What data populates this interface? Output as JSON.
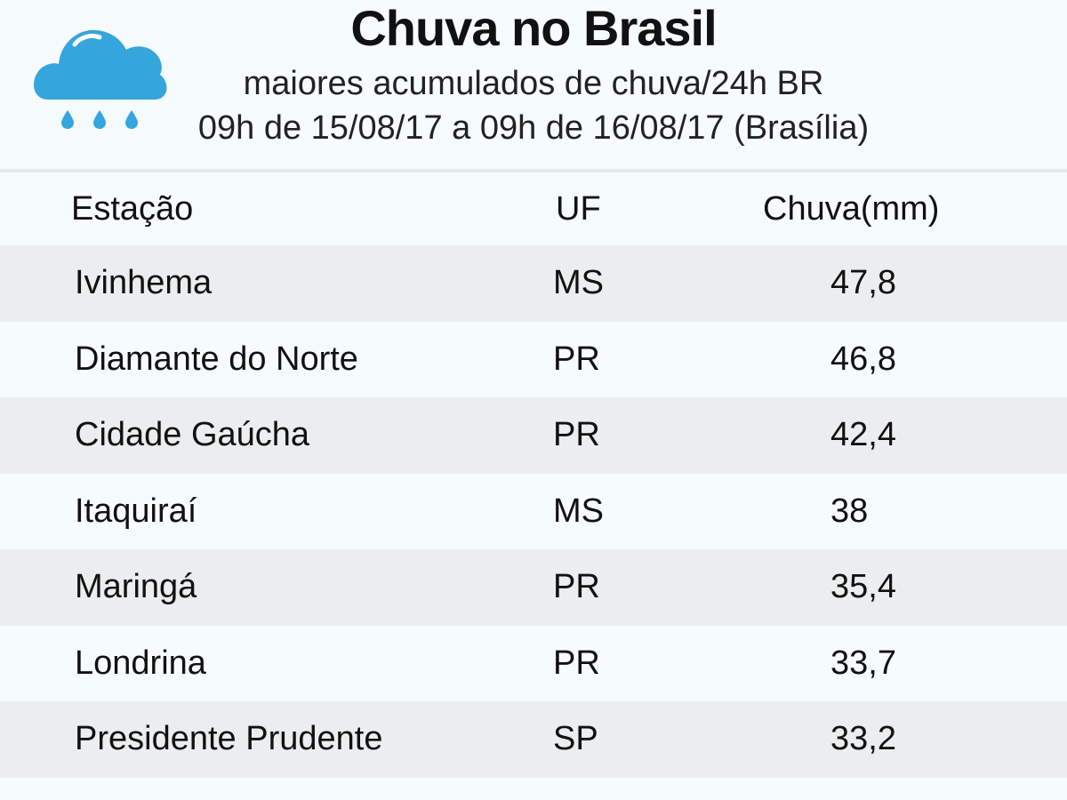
{
  "header": {
    "title": "Chuva no Brasil",
    "subtitle": "maiores acumulados de chuva/24h BR",
    "period": "09h de 15/08/17 a 09h de 16/08/17 (Brasília)",
    "icon": "rain-cloud-icon",
    "icon_color": "#35a6dc"
  },
  "table": {
    "columns": [
      "Estação",
      "UF",
      "Chuva(mm)"
    ],
    "rows": [
      {
        "station": "Ivinhema",
        "uf": "MS",
        "rain": "47,8"
      },
      {
        "station": "Diamante do Norte",
        "uf": "PR",
        "rain": "46,8"
      },
      {
        "station": "Cidade Gaúcha",
        "uf": "PR",
        "rain": "42,4"
      },
      {
        "station": "Itaquiraí",
        "uf": "MS",
        "rain": "38"
      },
      {
        "station": "Maringá",
        "uf": "PR",
        "rain": "35,4"
      },
      {
        "station": "Londrina",
        "uf": "PR",
        "rain": "33,7"
      },
      {
        "station": "Presidente Prudente",
        "uf": "SP",
        "rain": "33,2"
      }
    ]
  }
}
